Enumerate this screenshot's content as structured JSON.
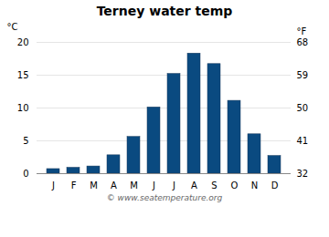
{
  "chart_data": {
    "type": "bar",
    "title": "Terney water temp",
    "categories": [
      "J",
      "F",
      "M",
      "A",
      "M",
      "J",
      "J",
      "A",
      "S",
      "O",
      "N",
      "D"
    ],
    "values": [
      0.7,
      0.9,
      1.1,
      2.8,
      5.6,
      10.1,
      15.2,
      18.3,
      16.7,
      11.1,
      6.0,
      2.7
    ],
    "color": "#0a4a80",
    "ylim": [
      0,
      20
    ],
    "yticks": [
      0,
      5,
      10,
      15,
      20
    ],
    "ylabel": "°C",
    "y2lim": [
      32,
      68
    ],
    "y2ticks": [
      32,
      41,
      50,
      59,
      68
    ],
    "y2label": "°F",
    "grid": true,
    "annotations": [
      "© www.seatemperature.org"
    ]
  }
}
